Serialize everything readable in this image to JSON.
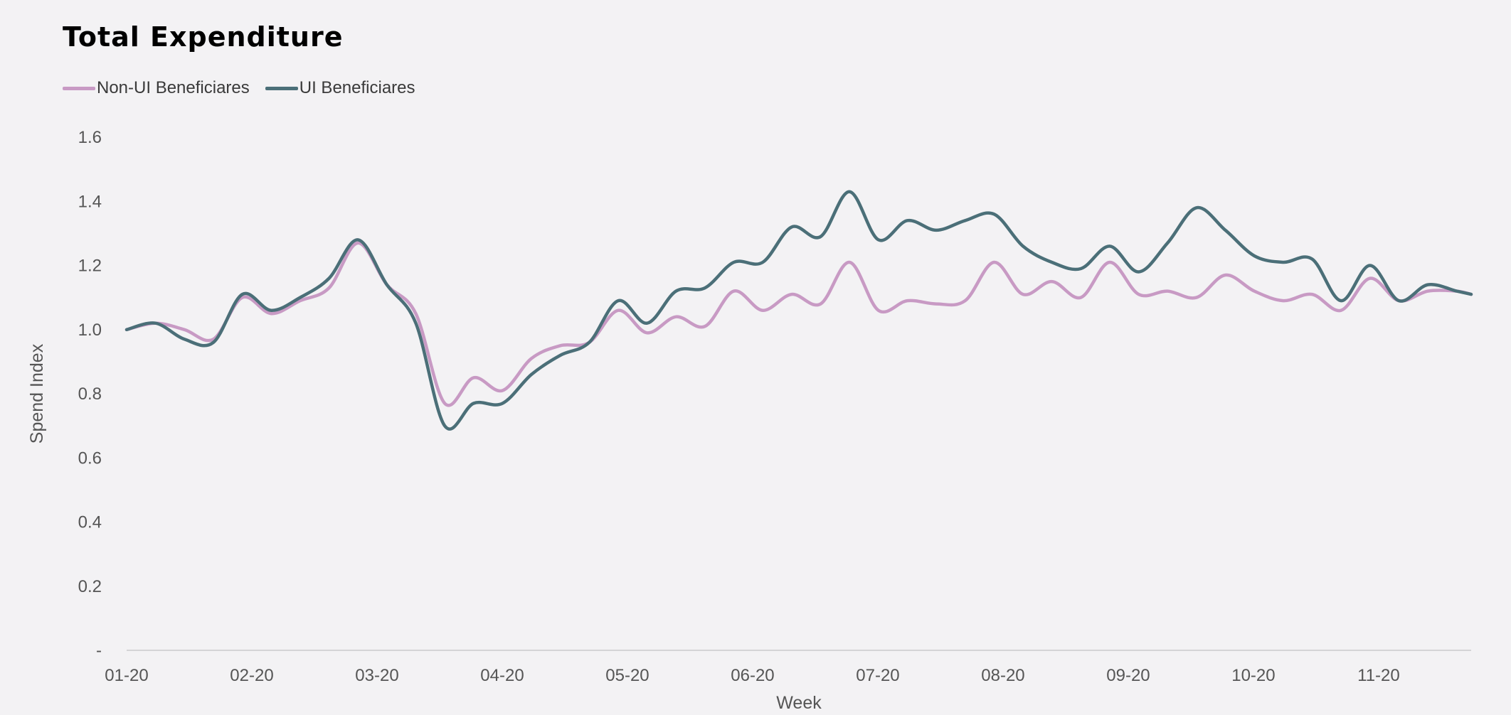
{
  "chart_data": {
    "type": "line",
    "title": "Total Expenditure",
    "xlabel": "Week",
    "ylabel": "Spend Index",
    "x_ticks": [
      "01-20",
      "02-20",
      "03-20",
      "04-20",
      "05-20",
      "06-20",
      "07-20",
      "08-20",
      "09-20",
      "10-20",
      "11-20"
    ],
    "y_ticks": [
      "-",
      "0.2",
      "0.4",
      "0.6",
      "0.8",
      "1.0",
      "1.2",
      "1.4",
      "1.6"
    ],
    "ylim": [
      0,
      1.6
    ],
    "x_range_weeks": [
      0,
      46.5
    ],
    "legend_position": "top-left",
    "grid": false,
    "weeks": [
      0,
      1,
      2,
      3,
      4,
      5,
      6,
      7,
      8,
      9,
      10,
      11,
      12,
      13,
      14,
      15,
      16,
      17,
      18,
      19,
      20,
      21,
      22,
      23,
      24,
      25,
      26,
      27,
      28,
      29,
      30,
      31,
      32,
      33,
      34,
      35,
      36,
      37,
      38,
      39,
      40,
      41,
      42,
      43,
      44,
      45,
      46,
      46.5
    ],
    "series": [
      {
        "name": "Non-UI Beneficiares",
        "color": "#c89ac4",
        "values": [
          1.0,
          1.02,
          1.0,
          0.97,
          1.1,
          1.05,
          1.09,
          1.13,
          1.27,
          1.14,
          1.05,
          0.77,
          0.85,
          0.81,
          0.91,
          0.95,
          0.96,
          1.06,
          0.99,
          1.04,
          1.01,
          1.12,
          1.06,
          1.11,
          1.08,
          1.21,
          1.06,
          1.09,
          1.08,
          1.09,
          1.21,
          1.11,
          1.15,
          1.1,
          1.21,
          1.11,
          1.12,
          1.1,
          1.17,
          1.12,
          1.09,
          1.11,
          1.06,
          1.16,
          1.09,
          1.12,
          1.12,
          1.11
        ]
      },
      {
        "name": "UI Beneficiares",
        "color": "#4b6f78",
        "values": [
          1.0,
          1.02,
          0.97,
          0.96,
          1.11,
          1.06,
          1.1,
          1.16,
          1.28,
          1.14,
          1.02,
          0.7,
          0.77,
          0.77,
          0.86,
          0.92,
          0.96,
          1.09,
          1.02,
          1.12,
          1.13,
          1.21,
          1.21,
          1.32,
          1.29,
          1.43,
          1.28,
          1.34,
          1.31,
          1.34,
          1.36,
          1.26,
          1.21,
          1.19,
          1.26,
          1.18,
          1.27,
          1.38,
          1.31,
          1.23,
          1.21,
          1.22,
          1.09,
          1.2,
          1.09,
          1.14,
          1.12,
          1.11
        ]
      }
    ]
  }
}
